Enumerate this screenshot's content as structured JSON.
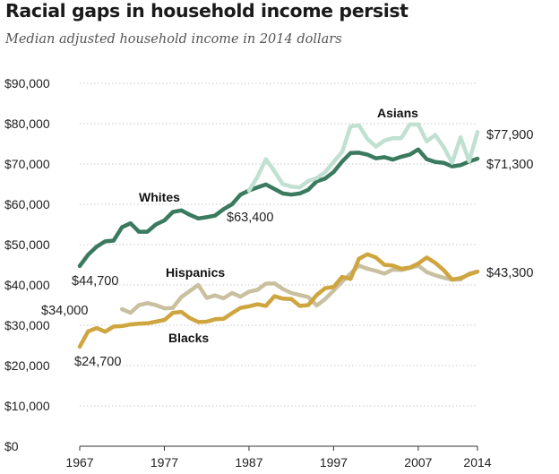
{
  "title": "Racial gaps in household income persist",
  "subtitle": "Median adjusted household income in 2014 dollars",
  "chart_data": {
    "type": "line",
    "title": "Racial gaps in household income persist",
    "subtitle": "Median adjusted household income in 2014 dollars",
    "xlim": [
      1967,
      2014
    ],
    "ylim": [
      0,
      90000
    ],
    "y_ticks": [
      0,
      10000,
      20000,
      30000,
      40000,
      50000,
      60000,
      70000,
      80000,
      90000
    ],
    "y_tick_labels": [
      "$0",
      "$10,000",
      "$20,000",
      "$30,000",
      "$40,000",
      "$50,000",
      "$60,000",
      "$70,000",
      "$80,000",
      "$90,000"
    ],
    "x_ticks": [
      1967,
      1977,
      1987,
      1997,
      2007,
      2014
    ],
    "x_tick_labels": [
      "1967",
      "1977",
      "1987",
      "1997",
      "2007",
      "2014"
    ],
    "grid": "horizontal dotted",
    "legend": "none (direct labels)",
    "series": [
      {
        "name": "Whites",
        "color": "#3a7a5e",
        "x": [
          1967,
          1968,
          1969,
          1970,
          1971,
          1972,
          1973,
          1974,
          1975,
          1976,
          1977,
          1978,
          1979,
          1980,
          1981,
          1982,
          1983,
          1984,
          1985,
          1986,
          1987,
          1988,
          1989,
          1990,
          1991,
          1992,
          1993,
          1994,
          1995,
          1996,
          1997,
          1998,
          1999,
          2000,
          2001,
          2002,
          2003,
          2004,
          2005,
          2006,
          2007,
          2008,
          2009,
          2010,
          2011,
          2012,
          2013,
          2014
        ],
        "values": [
          44700,
          47500,
          49500,
          50800,
          51000,
          54300,
          55300,
          53200,
          53200,
          55000,
          56000,
          58100,
          58500,
          57400,
          56500,
          56800,
          57200,
          58800,
          60000,
          62400,
          63400,
          64200,
          64900,
          63800,
          62700,
          62400,
          62700,
          63600,
          65700,
          66400,
          68000,
          70600,
          72700,
          72800,
          72300,
          71400,
          71700,
          71100,
          71800,
          72300,
          73600,
          71200,
          70500,
          70300,
          69400,
          69700,
          70600,
          71300
        ]
      },
      {
        "name": "Asians",
        "color": "#c0e0d2",
        "x": [
          1987,
          1988,
          1989,
          1990,
          1991,
          1992,
          1993,
          1994,
          1995,
          1996,
          1997,
          1998,
          1999,
          2000,
          2001,
          2002,
          2003,
          2004,
          2005,
          2006,
          2007,
          2008,
          2009,
          2010,
          2011,
          2012,
          2013,
          2014
        ],
        "values": [
          63400,
          66800,
          71200,
          68200,
          65000,
          64400,
          64200,
          65800,
          66500,
          68000,
          70500,
          73000,
          79300,
          79600,
          76200,
          74300,
          75800,
          76400,
          76400,
          79800,
          79800,
          75600,
          77200,
          74200,
          70300,
          76600,
          70700,
          77900
        ]
      },
      {
        "name": "Hispanics",
        "color": "#c9c09f",
        "x": [
          1972,
          1973,
          1974,
          1975,
          1976,
          1977,
          1978,
          1979,
          1980,
          1981,
          1982,
          1983,
          1984,
          1985,
          1986,
          1987,
          1988,
          1989,
          1990,
          1991,
          1992,
          1993,
          1994,
          1995,
          1996,
          1997,
          1998,
          1999,
          2000,
          2001,
          2002,
          2003,
          2004,
          2005,
          2006,
          2007,
          2008,
          2009,
          2010,
          2011,
          2012,
          2013,
          2014
        ],
        "values": [
          34000,
          33100,
          35000,
          35500,
          35000,
          34200,
          34300,
          37000,
          38500,
          40000,
          36800,
          37400,
          36700,
          38000,
          37100,
          38300,
          38800,
          40300,
          40400,
          39000,
          38000,
          37500,
          37000,
          34900,
          36500,
          38600,
          40800,
          42800,
          44800,
          44000,
          43500,
          42800,
          43800,
          43700,
          44200,
          44800,
          43200,
          42400,
          41800,
          41300,
          41400,
          42800,
          43300
        ]
      },
      {
        "name": "Blacks",
        "color": "#cfa53f",
        "x": [
          1967,
          1968,
          1969,
          1970,
          1971,
          1972,
          1973,
          1974,
          1975,
          1976,
          1977,
          1978,
          1979,
          1980,
          1981,
          1982,
          1983,
          1984,
          1985,
          1986,
          1987,
          1988,
          1989,
          1990,
          1991,
          1992,
          1993,
          1994,
          1995,
          1996,
          1997,
          1998,
          1999,
          2000,
          2001,
          2002,
          2003,
          2004,
          2005,
          2006,
          2007,
          2008,
          2009,
          2010,
          2011,
          2012,
          2013,
          2014
        ],
        "values": [
          24700,
          28500,
          29300,
          28400,
          29700,
          29800,
          30200,
          30400,
          30500,
          30900,
          31300,
          33100,
          33300,
          31800,
          30800,
          30900,
          31500,
          31600,
          33000,
          34300,
          34700,
          35200,
          34800,
          37200,
          36600,
          36500,
          34800,
          35000,
          37500,
          39200,
          39500,
          42000,
          41500,
          46500,
          47600,
          46800,
          45000,
          44800,
          44000,
          44300,
          45300,
          46800,
          45500,
          43700,
          41300,
          41700,
          42600,
          43300
        ]
      }
    ],
    "value_labels": [
      {
        "series": "Whites",
        "text": "$44,700"
      },
      {
        "series": "Whites",
        "text": "$63,400"
      },
      {
        "series": "Whites",
        "text": "$71,300"
      },
      {
        "series": "Asians",
        "text": "$77,900"
      },
      {
        "series": "Hispanics",
        "text": "$34,000"
      },
      {
        "series": "Hispanics",
        "text": "$43,300"
      },
      {
        "series": "Blacks",
        "text": "$24,700"
      }
    ],
    "series_labels": [
      "Whites",
      "Asians",
      "Hispanics",
      "Blacks"
    ]
  }
}
